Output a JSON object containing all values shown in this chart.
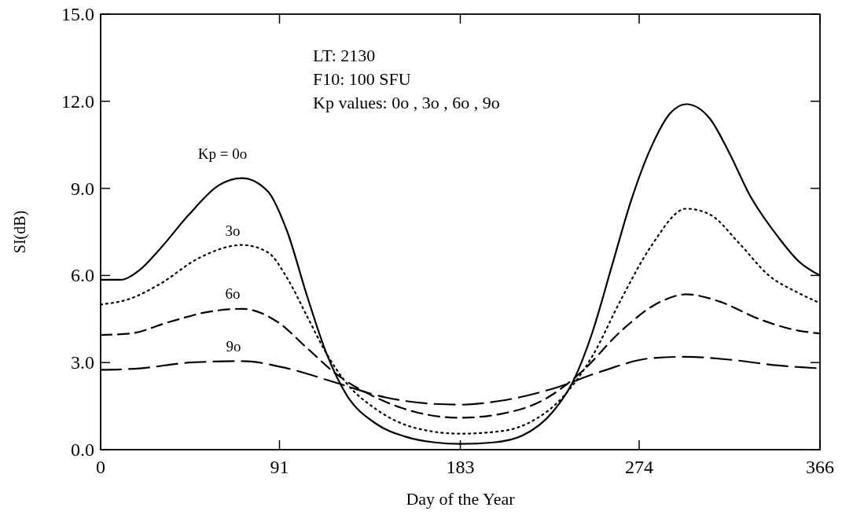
{
  "chart_data": {
    "type": "line",
    "xlabel": "Day of the Year",
    "ylabel": "SI(dB)",
    "xlim": [
      0,
      366
    ],
    "xticks": [
      0,
      91,
      183,
      274,
      366
    ],
    "ylim": [
      0,
      15
    ],
    "yticks": [
      {
        "value": 0,
        "label": "0.0"
      },
      {
        "value": 3,
        "label": "3.0"
      },
      {
        "value": 6,
        "label": "6.0"
      },
      {
        "value": 9,
        "label": "9.0"
      },
      {
        "value": 12,
        "label": "12.0"
      },
      {
        "value": 15,
        "label": "15.0"
      }
    ],
    "grid": false,
    "series": [
      {
        "color": "#000000",
        "line_style": "solid",
        "x": [
          0,
          10,
          20,
          30,
          45,
          60,
          72,
          85,
          95,
          105,
          115,
          125,
          140,
          155,
          170,
          183,
          200,
          215,
          230,
          240,
          250,
          260,
          270,
          280,
          290,
          298,
          310,
          320,
          330,
          345,
          355,
          366
        ],
        "values": [
          5.85,
          5.85,
          6.2,
          6.9,
          8.1,
          9.1,
          9.35,
          8.9,
          7.5,
          5.3,
          3.3,
          1.9,
          0.9,
          0.45,
          0.25,
          0.2,
          0.25,
          0.5,
          1.3,
          2.3,
          4.0,
          6.3,
          8.6,
          10.4,
          11.6,
          11.9,
          11.4,
          10.2,
          8.8,
          7.3,
          6.5,
          6.0
        ]
      },
      {
        "color": "#000000",
        "line_style": "dotted",
        "x": [
          0,
          15,
          30,
          50,
          72,
          85,
          95,
          105,
          115,
          125,
          140,
          160,
          183,
          205,
          220,
          235,
          250,
          265,
          280,
          298,
          310,
          325,
          340,
          355,
          366
        ],
        "values": [
          5.0,
          5.2,
          5.7,
          6.6,
          7.05,
          6.8,
          5.9,
          4.6,
          3.3,
          2.3,
          1.4,
          0.75,
          0.55,
          0.65,
          1.0,
          1.8,
          3.2,
          5.2,
          7.0,
          8.3,
          8.1,
          7.1,
          6.0,
          5.4,
          5.05
        ]
      },
      {
        "color": "#000000",
        "line_style": "dashed",
        "x": [
          0,
          15,
          35,
          55,
          72,
          90,
          105,
          120,
          140,
          160,
          183,
          205,
          225,
          245,
          265,
          285,
          298,
          315,
          335,
          355,
          366
        ],
        "values": [
          3.95,
          4.0,
          4.4,
          4.75,
          4.85,
          4.4,
          3.5,
          2.6,
          1.8,
          1.3,
          1.1,
          1.25,
          1.7,
          2.7,
          4.1,
          5.1,
          5.35,
          5.1,
          4.5,
          4.1,
          4.0
        ]
      },
      {
        "color": "#000000",
        "line_style": "longdash",
        "x": [
          0,
          20,
          45,
          72,
          95,
          120,
          145,
          165,
          183,
          205,
          230,
          255,
          280,
          298,
          320,
          345,
          366
        ],
        "values": [
          2.75,
          2.8,
          3.0,
          3.05,
          2.8,
          2.3,
          1.8,
          1.6,
          1.55,
          1.7,
          2.1,
          2.7,
          3.15,
          3.2,
          3.1,
          2.9,
          2.8
        ]
      }
    ],
    "annotations": [
      "LT: 2130",
      "F10:  100 SFU",
      "Kp values:  0o , 3o , 6o , 9o",
      "Kp = 0o",
      "3o",
      "6o",
      "9o"
    ]
  }
}
